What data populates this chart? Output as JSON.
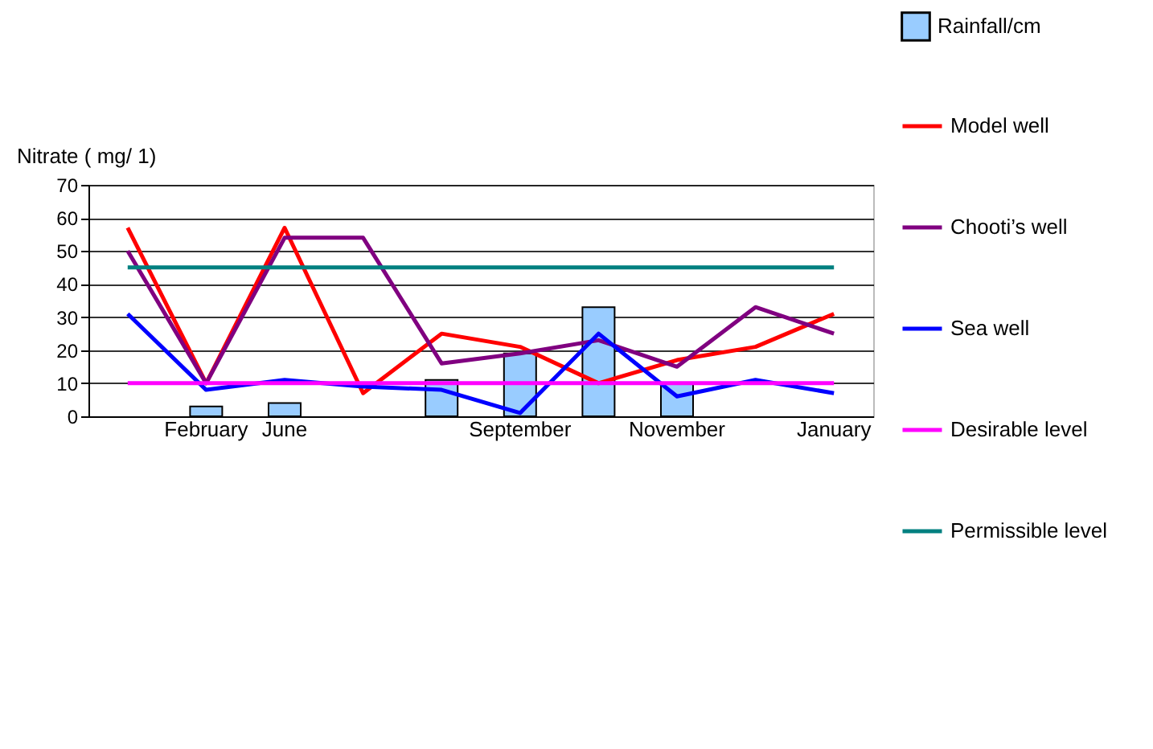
{
  "chart_data": {
    "type": "line",
    "ylabel": "Nitrate ( mg/ 1)",
    "categories": [
      null,
      "February",
      "June",
      null,
      null,
      "September",
      null,
      "November",
      null,
      "January"
    ],
    "series": [
      {
        "name": "Rainfall/cm",
        "type": "bar",
        "color": "#99ccff",
        "values": [
          null,
          3,
          4,
          null,
          11,
          19,
          33,
          10,
          null,
          null
        ]
      },
      {
        "name": "Model well",
        "color": "#ff0000",
        "values": [
          57,
          10,
          57,
          7,
          25,
          21,
          10,
          17,
          21,
          31
        ]
      },
      {
        "name": "Chooti’s well",
        "color": "#800080",
        "values": [
          50,
          10,
          54,
          54,
          16,
          19,
          23,
          15,
          33,
          25
        ]
      },
      {
        "name": "Sea well",
        "color": "#0000ff",
        "values": [
          31,
          8,
          11,
          9,
          8,
          1,
          25,
          6,
          11,
          7
        ]
      },
      {
        "name": "Desirable level",
        "color": "#ff00ff",
        "values": [
          10,
          10,
          10,
          10,
          10,
          10,
          10,
          10,
          10,
          10
        ]
      },
      {
        "name": "Permissible level",
        "color": "#008080",
        "values": [
          45,
          45,
          45,
          45,
          45,
          45,
          45,
          45,
          45,
          45
        ]
      }
    ],
    "ylim": [
      0,
      70
    ],
    "yticks": [
      0,
      10,
      20,
      30,
      40,
      50,
      60,
      70
    ],
    "grid": "y",
    "legend": "right"
  }
}
